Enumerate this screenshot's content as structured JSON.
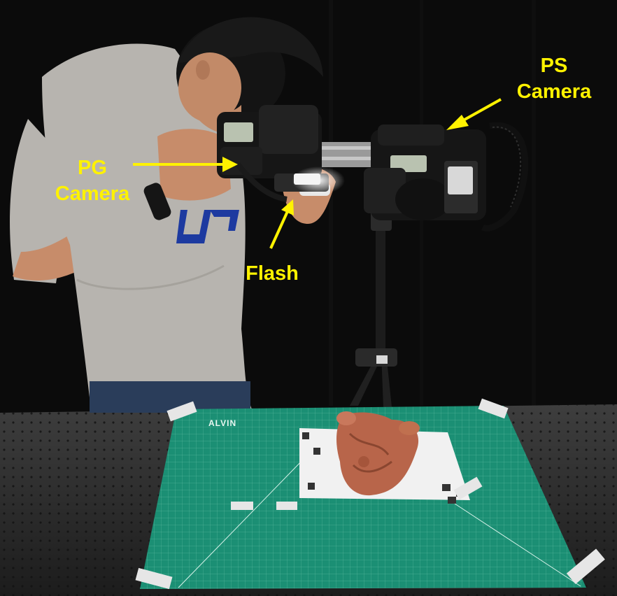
{
  "colors": {
    "annotation": "#fff200",
    "background": "#0b0b0b",
    "mat": "#1b8f74",
    "shirt": "#b7b4af",
    "logo": "#1d3aa0"
  },
  "annotations": {
    "ps_camera": {
      "line1": "PS",
      "line2": "Camera"
    },
    "pg_camera": {
      "line1": "PG",
      "line2": "Camera"
    },
    "flash": {
      "line1": "Flash"
    }
  },
  "mat_brand": "ALVIN"
}
